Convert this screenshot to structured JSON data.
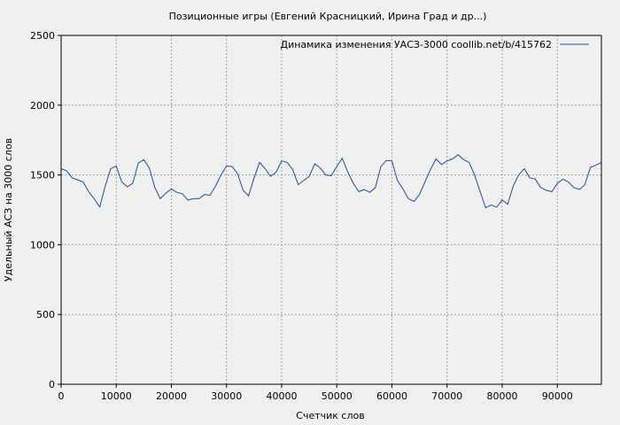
{
  "chart_data": {
    "type": "line",
    "title": "Позиционные игры (Евгений Красницкий, Ирина Град и др...)",
    "xlabel": "Счетчик слов",
    "ylabel": "Удельный АСЗ на 3000 слов",
    "xlim": [
      0,
      98000
    ],
    "ylim": [
      0,
      2500
    ],
    "xticks": [
      "0",
      "10000",
      "20000",
      "30000",
      "40000",
      "50000",
      "60000",
      "70000",
      "80000",
      "90000"
    ],
    "yticks": [
      "0",
      "500",
      "1000",
      "1500",
      "2000",
      "2500"
    ],
    "grid": true,
    "legend_position": "top-right",
    "colors": {
      "line": "#1f4e9c",
      "background": "#f0f0f0",
      "grid": "#a0a0a0"
    },
    "series": [
      {
        "name": "Динамика изменения УАСЗ-3000  coollib.net/b/415762",
        "x": [
          0,
          1000,
          2000,
          3000,
          4000,
          5000,
          6000,
          7000,
          8000,
          9000,
          10000,
          11000,
          12000,
          13000,
          14000,
          15000,
          16000,
          17000,
          18000,
          19000,
          20000,
          21000,
          22000,
          23000,
          24000,
          25000,
          26000,
          27000,
          28000,
          29000,
          30000,
          31000,
          32000,
          33000,
          34000,
          35000,
          36000,
          37000,
          38000,
          39000,
          40000,
          41000,
          42000,
          43000,
          44000,
          45000,
          46000,
          47000,
          48000,
          49000,
          50000,
          51000,
          52000,
          53000,
          54000,
          55000,
          56000,
          57000,
          58000,
          59000,
          60000,
          61000,
          62000,
          63000,
          64000,
          65000,
          66000,
          67000,
          68000,
          69000,
          70000,
          71000,
          72000,
          73000,
          74000,
          75000,
          76000,
          77000,
          78000,
          79000,
          80000,
          81000,
          82000,
          83000,
          84000,
          85000,
          86000,
          87000,
          88000,
          89000,
          90000,
          91000,
          92000,
          93000,
          94000,
          95000,
          96000,
          97000,
          98000
        ],
        "values": [
          1545,
          1530,
          1480,
          1465,
          1450,
          1380,
          1330,
          1270,
          1420,
          1545,
          1565,
          1450,
          1415,
          1440,
          1585,
          1610,
          1550,
          1410,
          1330,
          1370,
          1400,
          1375,
          1365,
          1320,
          1330,
          1330,
          1360,
          1355,
          1420,
          1500,
          1565,
          1560,
          1510,
          1390,
          1350,
          1480,
          1590,
          1545,
          1490,
          1520,
          1600,
          1590,
          1540,
          1430,
          1460,
          1490,
          1580,
          1550,
          1500,
          1495,
          1560,
          1620,
          1520,
          1440,
          1380,
          1395,
          1375,
          1410,
          1560,
          1605,
          1600,
          1460,
          1400,
          1330,
          1310,
          1360,
          1450,
          1540,
          1615,
          1575,
          1600,
          1615,
          1645,
          1610,
          1590,
          1500,
          1380,
          1265,
          1285,
          1270,
          1320,
          1290,
          1420,
          1500,
          1545,
          1480,
          1470,
          1410,
          1390,
          1380,
          1440,
          1470,
          1450,
          1410,
          1395,
          1430,
          1555,
          1570,
          1590
        ]
      }
    ]
  }
}
